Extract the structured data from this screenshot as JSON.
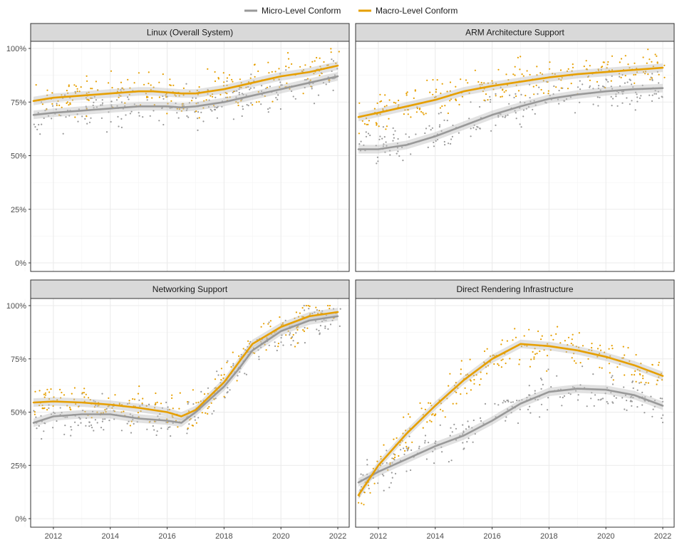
{
  "chart_data": {
    "type": "line",
    "facets": true,
    "legend": {
      "position": "top",
      "entries": [
        {
          "label": "Micro-Level Conform",
          "color": "#999999"
        },
        {
          "label": "Macro-Level Conform",
          "color": "#E69F00"
        }
      ]
    },
    "x_ticks": [
      2012,
      2014,
      2016,
      2018,
      2020,
      2022
    ],
    "y_ticks": [
      "0%",
      "25%",
      "50%",
      "75%",
      "100%"
    ],
    "xlim": [
      2011.2,
      2022.4
    ],
    "ylim": [
      0,
      1
    ],
    "grid": true,
    "panels": [
      {
        "title": "Linux (Overall System)",
        "series": [
          {
            "name": "Micro-Level Conform",
            "color": "#999999",
            "x": [
              2011.3,
              2012,
              2013,
              2014,
              2015,
              2016,
              2016.5,
              2017,
              2018,
              2019,
              2020,
              2021,
              2022
            ],
            "y": [
              0.69,
              0.7,
              0.71,
              0.72,
              0.73,
              0.73,
              0.725,
              0.73,
              0.75,
              0.78,
              0.81,
              0.84,
              0.87
            ]
          },
          {
            "name": "Macro-Level Conform",
            "color": "#E69F00",
            "x": [
              2011.3,
              2012,
              2013,
              2014,
              2015,
              2015.5,
              2016,
              2016.5,
              2017,
              2018,
              2019,
              2020,
              2021,
              2022
            ],
            "y": [
              0.755,
              0.77,
              0.78,
              0.79,
              0.8,
              0.8,
              0.795,
              0.79,
              0.79,
              0.81,
              0.84,
              0.87,
              0.89,
              0.92
            ]
          }
        ]
      },
      {
        "title": "ARM Architecture Support",
        "series": [
          {
            "name": "Micro-Level Conform",
            "color": "#999999",
            "x": [
              2011.3,
              2012,
              2013,
              2014,
              2015,
              2016,
              2017,
              2018,
              2019,
              2020,
              2021,
              2022
            ],
            "y": [
              0.53,
              0.53,
              0.55,
              0.59,
              0.64,
              0.69,
              0.73,
              0.765,
              0.785,
              0.8,
              0.81,
              0.815
            ]
          },
          {
            "name": "Macro-Level Conform",
            "color": "#E69F00",
            "x": [
              2011.3,
              2012,
              2013,
              2014,
              2015,
              2016,
              2017,
              2018,
              2019,
              2020,
              2021,
              2022
            ],
            "y": [
              0.68,
              0.7,
              0.73,
              0.76,
              0.8,
              0.825,
              0.845,
              0.865,
              0.88,
              0.89,
              0.9,
              0.91
            ]
          }
        ]
      },
      {
        "title": "Networking Support",
        "series": [
          {
            "name": "Micro-Level Conform",
            "color": "#999999",
            "x": [
              2011.3,
              2012,
              2013,
              2014,
              2015,
              2016,
              2016.5,
              2017,
              2018,
              2018.5,
              2019,
              2020,
              2021,
              2022
            ],
            "y": [
              0.45,
              0.48,
              0.49,
              0.49,
              0.47,
              0.46,
              0.45,
              0.5,
              0.62,
              0.7,
              0.79,
              0.88,
              0.93,
              0.95
            ]
          },
          {
            "name": "Macro-Level Conform",
            "color": "#E69F00",
            "x": [
              2011.3,
              2012,
              2013,
              2014,
              2015,
              2016,
              2016.5,
              2017,
              2018,
              2018.5,
              2019,
              2020,
              2021,
              2022
            ],
            "y": [
              0.545,
              0.55,
              0.545,
              0.535,
              0.52,
              0.5,
              0.48,
              0.51,
              0.64,
              0.73,
              0.82,
              0.9,
              0.95,
              0.97
            ]
          }
        ]
      },
      {
        "title": "Direct Rendering Infrastructure",
        "series": [
          {
            "name": "Micro-Level Conform",
            "color": "#999999",
            "x": [
              2011.3,
              2012,
              2013,
              2014,
              2015,
              2016,
              2017,
              2018,
              2019,
              2020,
              2021,
              2022
            ],
            "y": [
              0.17,
              0.22,
              0.28,
              0.34,
              0.39,
              0.46,
              0.54,
              0.595,
              0.61,
              0.605,
              0.58,
              0.53
            ]
          },
          {
            "name": "Macro-Level Conform",
            "color": "#E69F00",
            "x": [
              2011.3,
              2012,
              2013,
              2014,
              2015,
              2016,
              2017,
              2018,
              2019,
              2020,
              2021,
              2022
            ],
            "y": [
              0.11,
              0.25,
              0.4,
              0.53,
              0.65,
              0.75,
              0.82,
              0.81,
              0.79,
              0.76,
              0.72,
              0.67
            ]
          }
        ]
      }
    ]
  }
}
